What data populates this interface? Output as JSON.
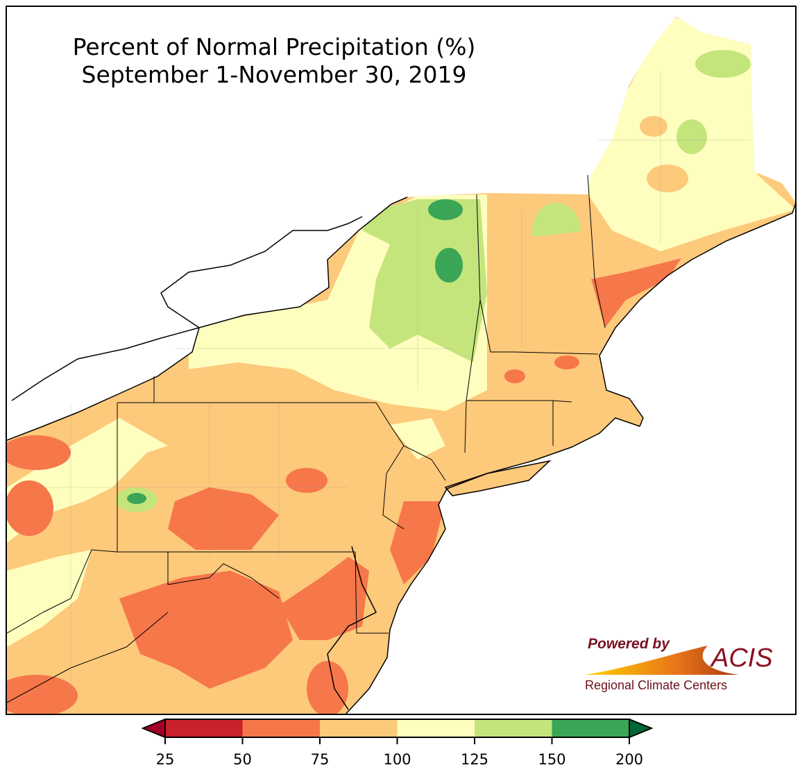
{
  "title": {
    "line1": "Percent of Normal Precipitation (%)",
    "line2": "September 1-November 30, 2019"
  },
  "colorbar": {
    "ticks": [
      "25",
      "50",
      "75",
      "100",
      "125",
      "150",
      "200"
    ],
    "bins": [
      {
        "range": "25-50",
        "color": "#c9222b"
      },
      {
        "range": "50-75",
        "color": "#f6774a"
      },
      {
        "range": "75-100",
        "color": "#fdc97b"
      },
      {
        "range": "100-125",
        "color": "#fefebe"
      },
      {
        "range": "125-150",
        "color": "#c4e47c"
      },
      {
        "range": "150-200",
        "color": "#3aa656"
      }
    ],
    "under_color": "#a50026",
    "over_color": "#006837"
  },
  "logo": {
    "powered_by": "Powered by",
    "name": "ACIS",
    "subtitle": "Regional Climate Centers"
  }
}
